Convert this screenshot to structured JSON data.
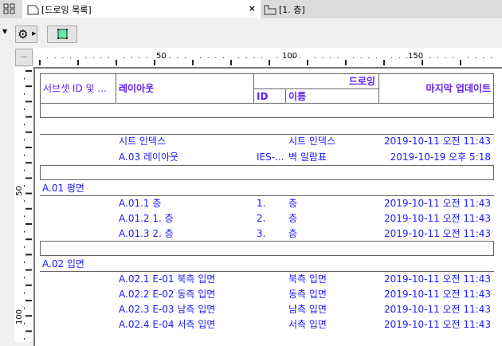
{
  "tabs": [
    {
      "label": "[드로잉 목록]",
      "active": true
    },
    {
      "label": "[1. 층]",
      "active": false
    }
  ],
  "ruler": {
    "top_labels": [
      "50",
      "100",
      "150"
    ],
    "left_labels": [
      "50",
      "100"
    ],
    "corner": "..."
  },
  "header": {
    "subset": "서브셋 ID 및 ...",
    "layout": "레이아웃",
    "drawing": "드로잉",
    "id": "ID",
    "name": "이름",
    "updated": "마지막 업데이트"
  },
  "rows": [
    {
      "layout": "시트 인덱스",
      "id": "",
      "name": "시트 인덱스",
      "updated": "2019-10-11 오전 11:43"
    },
    {
      "layout": "A.03 레이아웃",
      "id": "IES-...",
      "name": "벽 일람표",
      "updated": "2019-10-19 오후 5:18"
    }
  ],
  "groups": [
    {
      "title": "A.01 평면",
      "rows": [
        {
          "layout": "A.01.1 층",
          "id": "1.",
          "name": "층",
          "updated": "2019-10-11 오전 11:43"
        },
        {
          "layout": "A.01.2 1. 층",
          "id": "2.",
          "name": "층",
          "updated": "2019-10-11 오전 11:43"
        },
        {
          "layout": "A.01.3 2. 층",
          "id": "3.",
          "name": "층",
          "updated": "2019-10-11 오전 11:43"
        }
      ]
    },
    {
      "title": "A.02 입면",
      "rows": [
        {
          "layout": "A.02.1 E-01 북측 입면",
          "id": "",
          "name": "북측 입면",
          "updated": "2019-10-11 오전 11:43"
        },
        {
          "layout": "A.02.2 E-02 동측 입면",
          "id": "",
          "name": "동측 입면",
          "updated": "2019-10-11 오전 11:43"
        },
        {
          "layout": "A.02.3 E-03 남측 입면",
          "id": "",
          "name": "남측 입면",
          "updated": "2019-10-11 오전 11:43"
        },
        {
          "layout": "A.02.4 E-04 서측 입면",
          "id": "",
          "name": "서측 입면",
          "updated": "2019-10-11 오전 11:43"
        }
      ]
    }
  ],
  "colors": {
    "text": "#1a1aff",
    "header": "#6020f0"
  }
}
